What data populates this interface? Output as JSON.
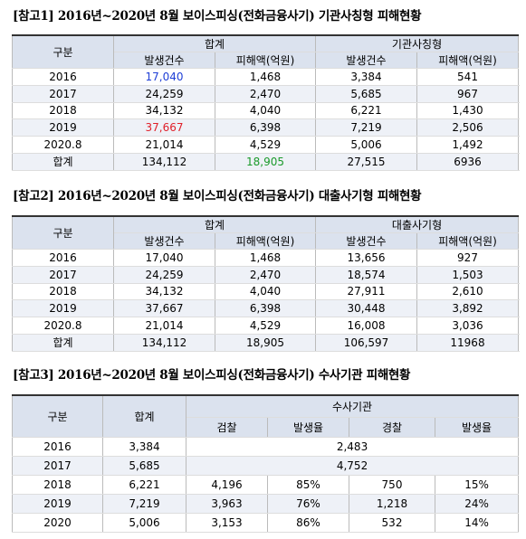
{
  "sections": [
    {
      "title": "[참고1] 2016년~2020년 8월 보이스피싱(전화금융사기) 기관사칭형 피해현황",
      "table": {
        "header": [
          "구분",
          "합계",
          "기관사칭형"
        ],
        "subheader": [
          "발생건수",
          "피해액(억원)",
          "발생건수",
          "피해액(억원)"
        ],
        "rows": [
          [
            "2016",
            "17,040",
            "1,468",
            "3,384",
            "541"
          ],
          [
            "2017",
            "24,259",
            "2,470",
            "5,685",
            "967"
          ],
          [
            "2018",
            "34,132",
            "4,040",
            "6,221",
            "1,430"
          ],
          [
            "2019",
            "37,667",
            "6,398",
            "7,219",
            "2,506"
          ],
          [
            "2020.8",
            "21,014",
            "4,529",
            "5,006",
            "1,492"
          ],
          [
            "합계",
            "134,112",
            "18,905",
            "27,515",
            "6936"
          ]
        ]
      }
    },
    {
      "title": "[참고2] 2016년~2020년 8월 보이스피싱(전화금융사기) 대출사기형 피해현황",
      "table": {
        "header": [
          "구분",
          "합계",
          "대출사기형"
        ],
        "subheader": [
          "발생건수",
          "피해액(억원)",
          "발생건수",
          "피해액(억원)"
        ],
        "rows": [
          [
            "2016",
            "17,040",
            "1,468",
            "13,656",
            "927"
          ],
          [
            "2017",
            "24,259",
            "2,470",
            "18,574",
            "1,503"
          ],
          [
            "2018",
            "34,132",
            "4,040",
            "27,911",
            "2,610"
          ],
          [
            "2019",
            "37,667",
            "6,398",
            "30,448",
            "3,892"
          ],
          [
            "2020.8",
            "21,014",
            "4,529",
            "16,008",
            "3,036"
          ],
          [
            "합계",
            "134,112",
            "18,905",
            "106,597",
            "11968"
          ]
        ]
      }
    },
    {
      "title": "[참고3] 2016년~2020년 8월 보이스피싱(전화금융사기) 수사기관 피해현황",
      "table": {
        "header": [
          "구분",
          "합계",
          "수사기관"
        ],
        "subheader": [
          "검찰",
          "발생율",
          "경찰",
          "발생율"
        ],
        "rows": [
          [
            "2016",
            "3,384",
            "2,483"
          ],
          [
            "2017",
            "5,685",
            "4,752"
          ],
          [
            "2018",
            "6,221",
            "4,196",
            "85%",
            "750",
            "15%"
          ],
          [
            "2019",
            "7,219",
            "3,963",
            "76%",
            "1,218",
            "24%"
          ],
          [
            "2020",
            "5,006",
            "3,153",
            "86%",
            "532",
            "14%"
          ]
        ]
      }
    }
  ]
}
